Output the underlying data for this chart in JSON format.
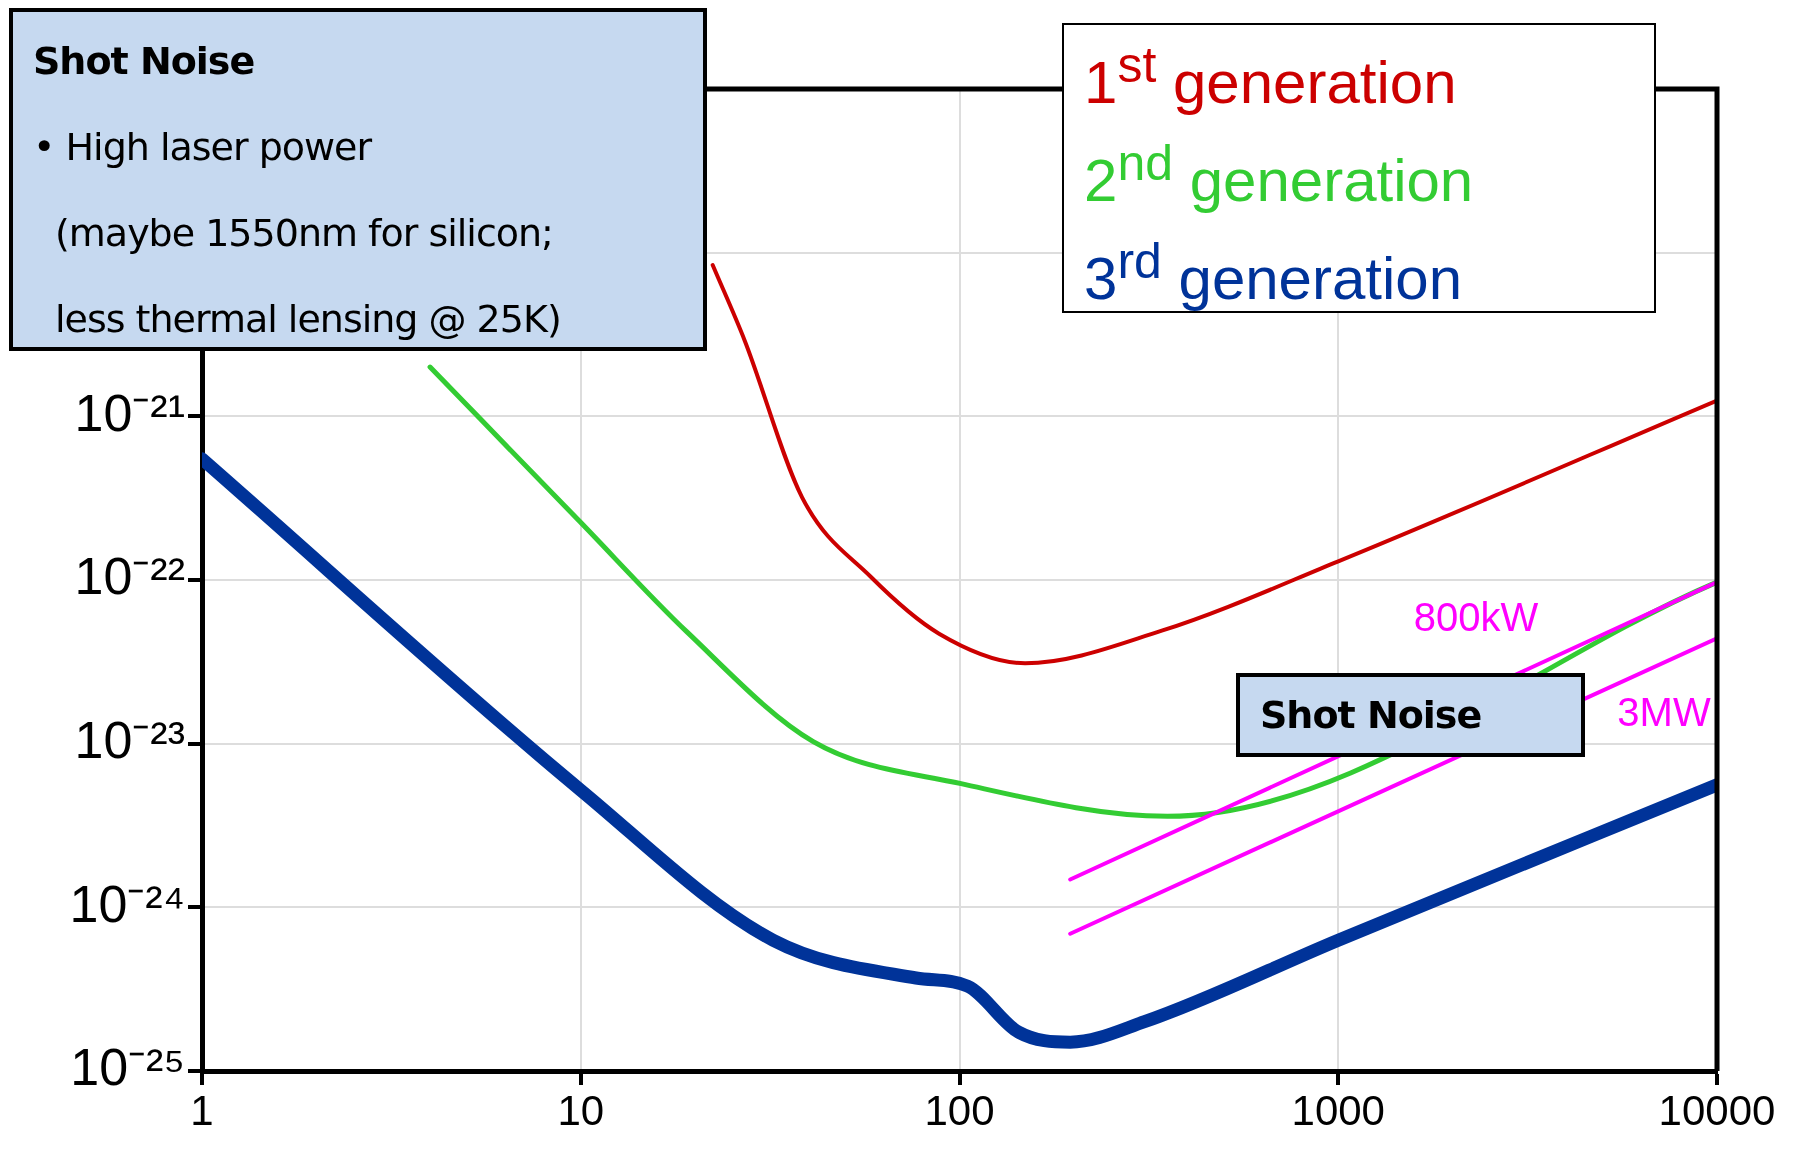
{
  "chart_data": {
    "type": "line",
    "legend": "top right",
    "grid": true,
    "log": "xy",
    "xlim": [
      1,
      10000
    ],
    "xticks": [
      1,
      10,
      100,
      1000,
      10000
    ],
    "ylim": [
      1e-25,
      1e-19
    ],
    "yticks": [
      {
        "value": 1e-25,
        "label": "10⁻²⁵"
      },
      {
        "value": 1e-24,
        "label": "10⁻²⁴"
      },
      {
        "value": 1e-23,
        "label": "10⁻²³"
      },
      {
        "value": 1e-22,
        "label": "10⁻²²"
      },
      {
        "value": 1e-21,
        "label": "10⁻²¹"
      },
      {
        "value": 1e-20,
        "label": null
      },
      {
        "value": 1e-19,
        "label": null
      }
    ],
    "series": [
      {
        "name": "1$^{st}$ generation",
        "color": "#cc0000",
        "x": [
          22.3,
          27.1,
          38.4,
          58.2,
          88.3,
          149,
          342,
          1000,
          10000
        ],
        "values": [
          8.4e-21,
          2.9e-21,
          3.2e-22,
          1.05e-22,
          4.7e-23,
          3.1e-23,
          4.9e-23,
          1.3e-22,
          1.25e-21
        ]
      },
      {
        "name": "2$^{nd}$ generation",
        "color": "#33cc33",
        "x": [
          4,
          9.9,
          19.1,
          41.1,
          101,
          354,
          10000
        ],
        "values": [
          2e-21,
          2.3e-22,
          4.8e-23,
          1.03e-23,
          5.7e-24,
          3.6e-24,
          9.7e-23
        ]
      },
      {
        "name": "3$^{rd}$ generation",
        "color": "#003399",
        "x": [
          1,
          10,
          32.2,
          76.8,
          105,
          143,
          196,
          308,
          1000,
          10000
        ],
        "values": [
          5.5e-22,
          5.2e-24,
          6.3e-25,
          3.7e-25,
          3.3e-25,
          1.73e-25,
          1.5e-25,
          2e-25,
          6.3e-25,
          5.6e-24
        ]
      },
      {
        "color": "#ff00ff",
        "x": [
          196,
          10000
        ],
        "values": [
          1.48e-24,
          9.7e-23
        ]
      },
      {
        "color": "#ff00ff",
        "x": [
          196,
          10000
        ],
        "values": [
          6.9e-25,
          4.4e-23
        ]
      }
    ],
    "annotations": [
      "Shot Noise",
      "• High laser power",
      "(maybe 1550nm for silicon;",
      "less thermal lensing @ 25K)",
      "Shot Noise",
      "800kW",
      "3MW"
    ]
  }
}
